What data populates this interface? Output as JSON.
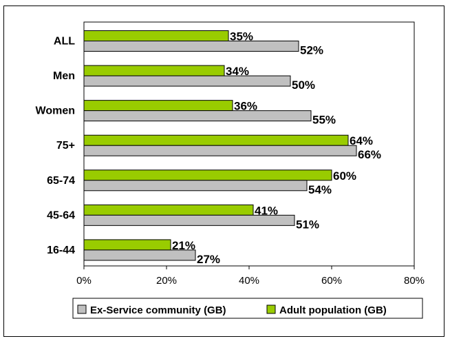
{
  "chart_data": {
    "type": "bar",
    "orientation": "horizontal",
    "categories": [
      "ALL",
      "Men",
      "Women",
      "75+",
      "65-74",
      "45-64",
      "16-44"
    ],
    "series": [
      {
        "name": "Adult population (GB)",
        "values": [
          35,
          34,
          36,
          64,
          60,
          41,
          21
        ],
        "color": "#99cc00"
      },
      {
        "name": "Ex-Service community (GB)",
        "values": [
          52,
          50,
          55,
          66,
          54,
          51,
          27
        ],
        "color": "#c0c0c0"
      }
    ],
    "value_suffix": "%",
    "xlim": [
      0,
      80
    ],
    "xticks": [
      "0%",
      "20%",
      "40%",
      "60%",
      "80%"
    ],
    "grid": false,
    "legend_position": "bottom",
    "legend": [
      "Ex-Service community (GB)",
      "Adult population (GB)"
    ]
  }
}
